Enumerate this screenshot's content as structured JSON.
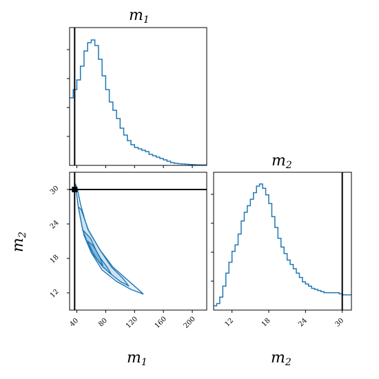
{
  "chart_data": {
    "type": "corner",
    "parameters": [
      "m1",
      "m2"
    ],
    "truth": {
      "m1": 37,
      "m2": 30
    },
    "colors": {
      "line": "#1f77b4",
      "fill": "#c6dbef",
      "fill_inner": "#6baed6",
      "truth": "#000000"
    },
    "panels": [
      {
        "id": "m1-hist",
        "type": "histogram",
        "title_main": "m",
        "title_sub": "1",
        "xlim": [
          30,
          220
        ],
        "bins_start": 30,
        "bin_width": 5,
        "counts": [
          0.49,
          0.55,
          0.62,
          0.72,
          0.83,
          0.89,
          0.91,
          0.87,
          0.77,
          0.65,
          0.55,
          0.46,
          0.4,
          0.34,
          0.27,
          0.22,
          0.18,
          0.15,
          0.13,
          0.12,
          0.11,
          0.1,
          0.08,
          0.07,
          0.06,
          0.05,
          0.04,
          0.03,
          0.02,
          0.015,
          0.012,
          0.01,
          0.008,
          0.006,
          0.005,
          0.004,
          0.003,
          0.003
        ]
      },
      {
        "id": "m2-hist",
        "type": "histogram",
        "title_main": "m",
        "title_sub": "2",
        "xlim": [
          9,
          31.5
        ],
        "xticks": [
          "12",
          "18",
          "24",
          "30"
        ],
        "bins_start": 9,
        "bin_width": 0.5,
        "counts": [
          0.02,
          0.03,
          0.06,
          0.11,
          0.17,
          0.22,
          0.27,
          0.3,
          0.35,
          0.41,
          0.45,
          0.48,
          0.51,
          0.54,
          0.57,
          0.58,
          0.56,
          0.53,
          0.49,
          0.43,
          0.38,
          0.33,
          0.29,
          0.26,
          0.23,
          0.21,
          0.19,
          0.17,
          0.15,
          0.13,
          0.12,
          0.11,
          0.1,
          0.095,
          0.09,
          0.085,
          0.08,
          0.08,
          0.08,
          0.08,
          0.08,
          0.075,
          0.07,
          0.07,
          0.07
        ]
      },
      {
        "id": "m1-m2-joint",
        "type": "contour",
        "xlim": [
          30,
          220
        ],
        "ylim": [
          9,
          33
        ],
        "xticks": [
          "40",
          "80",
          "120",
          "160",
          "200"
        ],
        "yticks": [
          "12",
          "18",
          "24",
          "30"
        ],
        "xlabel_main": "m",
        "xlabel_sub": "1",
        "ylabel_main": "m",
        "ylabel_sub": "2",
        "contours": [
          [
            [
              38,
              31
            ],
            [
              42,
              27
            ],
            [
              50,
              22
            ],
            [
              60,
              19
            ],
            [
              75,
              16
            ],
            [
              95,
              14
            ],
            [
              115,
              12.6
            ],
            [
              132,
              11.8
            ],
            [
              127,
              12.4
            ],
            [
              108,
              14.5
            ],
            [
              90,
              16.5
            ],
            [
              72,
              19.5
            ],
            [
              55,
              23
            ],
            [
              45,
              27.5
            ],
            [
              41,
              30
            ]
          ],
          [
            [
              42,
              27
            ],
            [
              48,
              23
            ],
            [
              58,
              20
            ],
            [
              70,
              17.5
            ],
            [
              85,
              15.5
            ],
            [
              100,
              14
            ],
            [
              112,
              13.2
            ],
            [
              104,
              14.5
            ],
            [
              88,
              16.5
            ],
            [
              72,
              19.5
            ],
            [
              56,
              23
            ],
            [
              46,
              26.5
            ]
          ],
          [
            [
              48,
              23
            ],
            [
              55,
              20.5
            ],
            [
              64,
              18.5
            ],
            [
              76,
              16.5
            ],
            [
              88,
              15.2
            ],
            [
              82,
              16.5
            ],
            [
              70,
              18.5
            ],
            [
              59,
              21.5
            ]
          ],
          [
            [
              55,
              21
            ],
            [
              62,
              19
            ],
            [
              70,
              17.5
            ],
            [
              76,
              16.8
            ],
            [
              72,
              18.2
            ],
            [
              63,
              20.2
            ]
          ]
        ]
      }
    ],
    "x_axis_labels": [
      {
        "main": "m",
        "sub": "1"
      },
      {
        "main": "m",
        "sub": "2"
      }
    ]
  }
}
